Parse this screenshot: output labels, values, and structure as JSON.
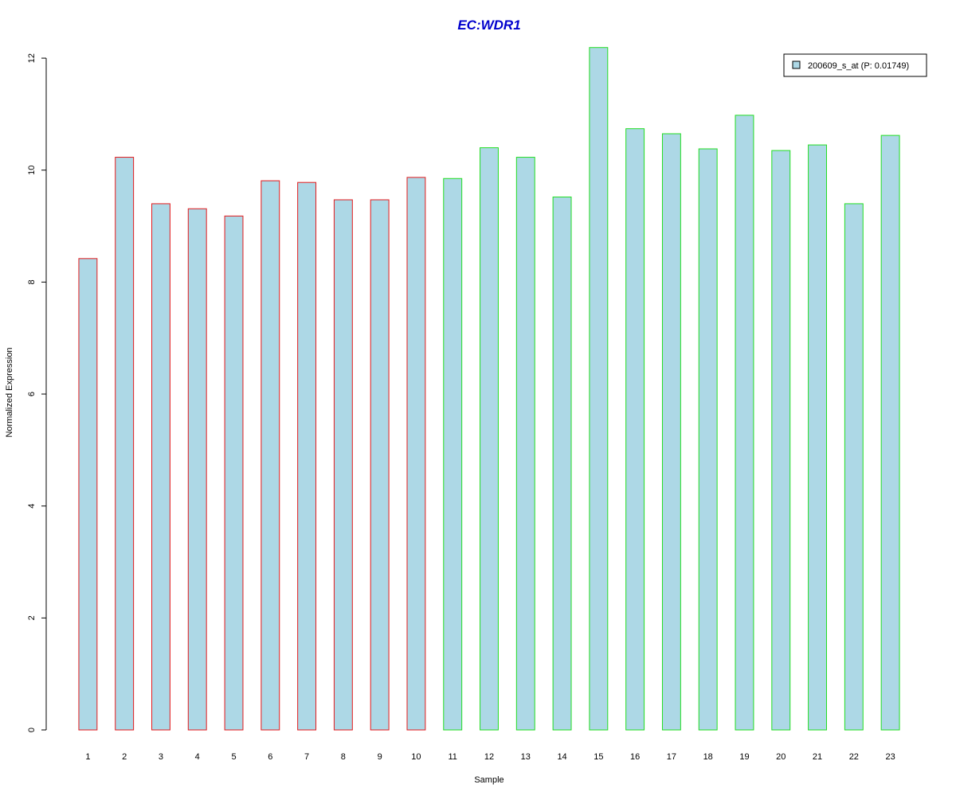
{
  "chart_data": {
    "type": "bar",
    "title": "EC:WDR1",
    "xlabel": "Sample",
    "ylabel": "Normalized Expression",
    "categories": [
      "1",
      "2",
      "3",
      "4",
      "5",
      "6",
      "7",
      "8",
      "9",
      "10",
      "11",
      "12",
      "13",
      "14",
      "15",
      "16",
      "17",
      "18",
      "19",
      "20",
      "21",
      "22",
      "23"
    ],
    "series": [
      {
        "name": "200609_s_at (P: 0.01749)",
        "values": [
          8.42,
          10.23,
          9.4,
          9.31,
          9.18,
          9.81,
          9.78,
          9.47,
          9.47,
          9.87,
          9.85,
          10.4,
          10.23,
          9.52,
          12.19,
          10.74,
          10.65,
          10.38,
          10.98,
          10.35,
          10.45,
          9.4,
          10.62
        ]
      }
    ],
    "groups": [
      {
        "samples": [
          "1",
          "2",
          "3",
          "4",
          "5",
          "6",
          "7",
          "8",
          "9",
          "10"
        ],
        "border_color": "#e31a1c"
      },
      {
        "samples": [
          "11",
          "12",
          "13",
          "14",
          "15",
          "16",
          "17",
          "18",
          "19",
          "20",
          "21",
          "22",
          "23"
        ],
        "border_color": "#22dd22"
      }
    ],
    "ylim": [
      0,
      12.2
    ],
    "yticks": [
      0,
      2,
      4,
      6,
      8,
      10,
      12
    ],
    "bar_fill": "#add8e6",
    "title_color": "#0000cd",
    "legend_position": "top-right",
    "grid": false
  }
}
